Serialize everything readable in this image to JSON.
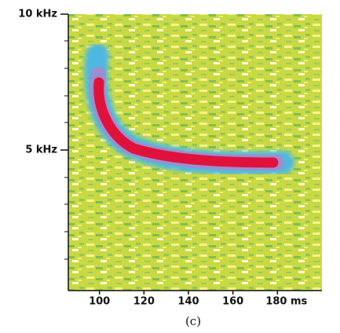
{
  "chart_data": {
    "type": "spectrogram",
    "caption": "(c)",
    "xlim": [
      86,
      200
    ],
    "xticks": [
      100,
      120,
      140,
      160,
      {
        "value": 180,
        "label": "180 ms"
      }
    ],
    "ylim": [
      0,
      10
    ],
    "yticks": [
      {
        "value": 5,
        "label": "5 kHz"
      },
      {
        "value": 10,
        "label": "10 kHz"
      }
    ]
  }
}
